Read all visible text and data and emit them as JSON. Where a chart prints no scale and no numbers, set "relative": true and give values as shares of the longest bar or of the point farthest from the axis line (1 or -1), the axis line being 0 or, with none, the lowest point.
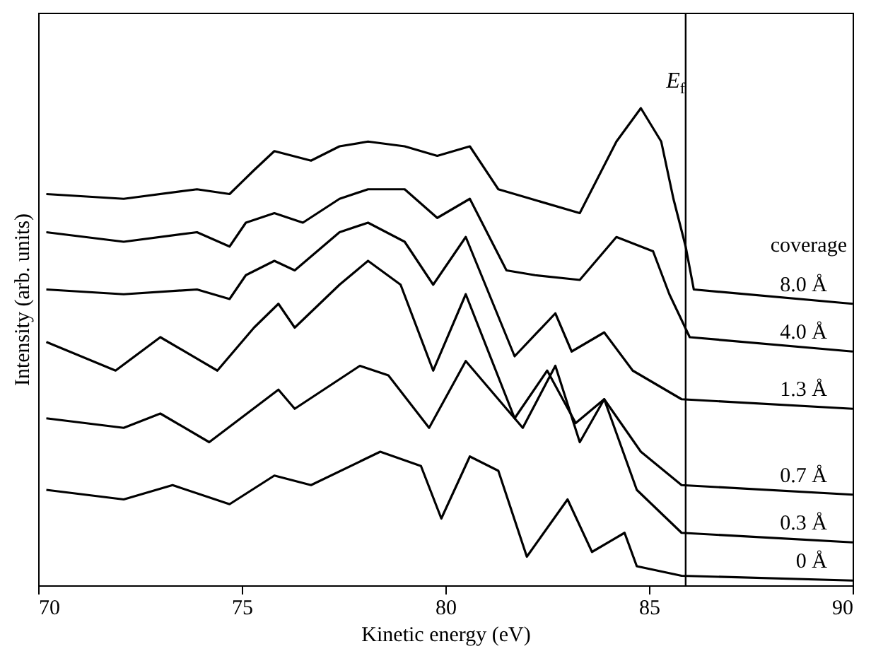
{
  "chart_data": {
    "type": "line",
    "relative": true,
    "xlabel": "Kinetic energy (eV)",
    "ylabel": "Intensity (arb. units)",
    "legend_title": "coverage",
    "legend": false,
    "grid": false,
    "marker": "none",
    "line_style": "solid",
    "xlim": [
      70,
      90
    ],
    "xticks": [
      70,
      75,
      80,
      85,
      90
    ],
    "ref_lines": [
      {
        "axis": "x",
        "value": 85.9,
        "label": "E$_{f}$",
        "color": "#000000"
      }
    ],
    "series": [
      {
        "name": "8.0 Å",
        "color": "#000000",
        "x": [
          70.2,
          72.1,
          73.9,
          74.7,
          75.3,
          75.8,
          76.7,
          77.4,
          78.1,
          79.0,
          79.8,
          80.6,
          81.3,
          82.1,
          83.3,
          84.2,
          84.8,
          85.3,
          85.6,
          85.9,
          86.1,
          90
        ],
        "values": [
          0.82,
          0.81,
          0.83,
          0.82,
          0.87,
          0.91,
          0.89,
          0.92,
          0.93,
          0.92,
          0.9,
          0.92,
          0.83,
          0.81,
          0.78,
          0.93,
          1,
          0.93,
          0.81,
          0.71,
          0.62,
          0.59
        ]
      },
      {
        "name": "4.0 Å",
        "color": "#000000",
        "x": [
          70.2,
          72.1,
          73.9,
          74.7,
          75.1,
          75.8,
          76.5,
          77.4,
          78.1,
          79.0,
          79.8,
          80.6,
          81.5,
          82.2,
          83.3,
          84.2,
          85.1,
          85.5,
          86.0,
          90
        ],
        "values": [
          0.74,
          0.72,
          0.74,
          0.71,
          0.76,
          0.78,
          0.76,
          0.81,
          0.83,
          0.83,
          0.77,
          0.81,
          0.66,
          0.65,
          0.64,
          0.73,
          0.7,
          0.61,
          0.52,
          0.49
        ]
      },
      {
        "name": "1.3 Å",
        "color": "#000000",
        "x": [
          70.2,
          72.1,
          73.9,
          74.7,
          75.1,
          75.8,
          76.3,
          77.4,
          78.1,
          79.0,
          79.7,
          80.5,
          81.7,
          82.7,
          83.1,
          83.9,
          84.6,
          85.8,
          90
        ],
        "values": [
          0.62,
          0.61,
          0.62,
          0.6,
          0.65,
          0.68,
          0.66,
          0.74,
          0.76,
          0.72,
          0.63,
          0.73,
          0.48,
          0.57,
          0.49,
          0.53,
          0.45,
          0.39,
          0.37
        ]
      },
      {
        "name": "0.7 Å",
        "color": "#000000",
        "x": [
          70.2,
          71.9,
          73.0,
          74.4,
          75.3,
          75.9,
          76.3,
          77.4,
          78.1,
          78.9,
          79.7,
          80.5,
          81.7,
          82.5,
          83.2,
          83.9,
          84.8,
          85.8,
          90
        ],
        "values": [
          0.51,
          0.45,
          0.52,
          0.45,
          0.54,
          0.59,
          0.54,
          0.63,
          0.68,
          0.63,
          0.45,
          0.61,
          0.35,
          0.45,
          0.34,
          0.39,
          0.28,
          0.21,
          0.19
        ]
      },
      {
        "name": "0.3 Å",
        "color": "#000000",
        "x": [
          70.2,
          72.1,
          73.0,
          74.2,
          75.9,
          76.3,
          77.9,
          78.6,
          79.6,
          80.5,
          81.9,
          82.7,
          83.3,
          83.9,
          84.7,
          85.8,
          90
        ],
        "values": [
          0.35,
          0.33,
          0.36,
          0.3,
          0.41,
          0.37,
          0.46,
          0.44,
          0.33,
          0.47,
          0.33,
          0.46,
          0.3,
          0.39,
          0.2,
          0.11,
          0.09
        ]
      },
      {
        "name": "0 Å",
        "color": "#000000",
        "x": [
          70.2,
          72.1,
          73.3,
          74.7,
          75.8,
          76.7,
          78.4,
          79.4,
          79.9,
          80.6,
          81.3,
          82.0,
          83.0,
          83.6,
          84.4,
          84.7,
          85.8,
          90
        ],
        "values": [
          0.2,
          0.18,
          0.21,
          0.17,
          0.23,
          0.21,
          0.28,
          0.25,
          0.14,
          0.27,
          0.24,
          0.06,
          0.18,
          0.07,
          0.11,
          0.04,
          0.02,
          0.01
        ]
      }
    ]
  }
}
